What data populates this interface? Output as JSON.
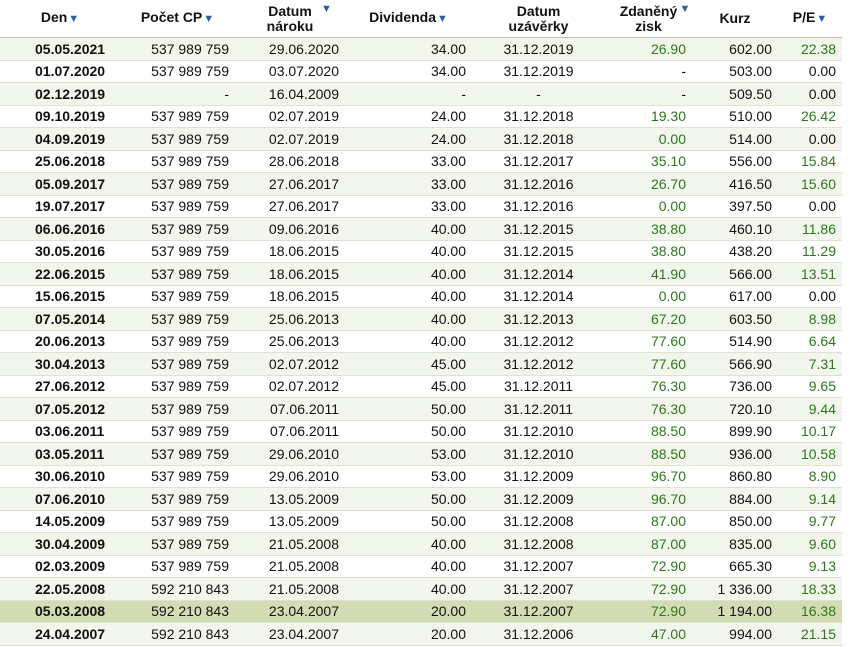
{
  "table": {
    "header": [
      "Den",
      "Počet CP",
      "Datum nároku",
      "Dividenda",
      "Datum uzávěrky",
      "Zdaněný zisk",
      "Kurz",
      "P/E"
    ],
    "highlight_row": 25,
    "rows": [
      [
        "05.05.2021",
        "537 989 759",
        "29.06.2020",
        "34.00",
        "31.12.2019",
        "26.90",
        "602.00",
        "22.38"
      ],
      [
        "01.07.2020",
        "537 989 759",
        "03.07.2020",
        "34.00",
        "31.12.2019",
        "-",
        "503.00",
        "0.00"
      ],
      [
        "02.12.2019",
        "-",
        "16.04.2009",
        "-",
        "-",
        "-",
        "509.50",
        "0.00"
      ],
      [
        "09.10.2019",
        "537 989 759",
        "02.07.2019",
        "24.00",
        "31.12.2018",
        "19.30",
        "510.00",
        "26.42"
      ],
      [
        "04.09.2019",
        "537 989 759",
        "02.07.2019",
        "24.00",
        "31.12.2018",
        "0.00",
        "514.00",
        "0.00"
      ],
      [
        "25.06.2018",
        "537 989 759",
        "28.06.2018",
        "33.00",
        "31.12.2017",
        "35.10",
        "556.00",
        "15.84"
      ],
      [
        "05.09.2017",
        "537 989 759",
        "27.06.2017",
        "33.00",
        "31.12.2016",
        "26.70",
        "416.50",
        "15.60"
      ],
      [
        "19.07.2017",
        "537 989 759",
        "27.06.2017",
        "33.00",
        "31.12.2016",
        "0.00",
        "397.50",
        "0.00"
      ],
      [
        "06.06.2016",
        "537 989 759",
        "09.06.2016",
        "40.00",
        "31.12.2015",
        "38.80",
        "460.10",
        "11.86"
      ],
      [
        "30.05.2016",
        "537 989 759",
        "18.06.2015",
        "40.00",
        "31.12.2015",
        "38.80",
        "438.20",
        "11.29"
      ],
      [
        "22.06.2015",
        "537 989 759",
        "18.06.2015",
        "40.00",
        "31.12.2014",
        "41.90",
        "566.00",
        "13.51"
      ],
      [
        "15.06.2015",
        "537 989 759",
        "18.06.2015",
        "40.00",
        "31.12.2014",
        "0.00",
        "617.00",
        "0.00"
      ],
      [
        "07.05.2014",
        "537 989 759",
        "25.06.2013",
        "40.00",
        "31.12.2013",
        "67.20",
        "603.50",
        "8.98"
      ],
      [
        "20.06.2013",
        "537 989 759",
        "25.06.2013",
        "40.00",
        "31.12.2012",
        "77.60",
        "514.90",
        "6.64"
      ],
      [
        "30.04.2013",
        "537 989 759",
        "02.07.2012",
        "45.00",
        "31.12.2012",
        "77.60",
        "566.90",
        "7.31"
      ],
      [
        "27.06.2012",
        "537 989 759",
        "02.07.2012",
        "45.00",
        "31.12.2011",
        "76.30",
        "736.00",
        "9.65"
      ],
      [
        "07.05.2012",
        "537 989 759",
        "07.06.2011",
        "50.00",
        "31.12.2011",
        "76.30",
        "720.10",
        "9.44"
      ],
      [
        "03.06.2011",
        "537 989 759",
        "07.06.2011",
        "50.00",
        "31.12.2010",
        "88.50",
        "899.90",
        "10.17"
      ],
      [
        "03.05.2011",
        "537 989 759",
        "29.06.2010",
        "53.00",
        "31.12.2010",
        "88.50",
        "936.00",
        "10.58"
      ],
      [
        "30.06.2010",
        "537 989 759",
        "29.06.2010",
        "53.00",
        "31.12.2009",
        "96.70",
        "860.80",
        "8.90"
      ],
      [
        "07.06.2010",
        "537 989 759",
        "13.05.2009",
        "50.00",
        "31.12.2009",
        "96.70",
        "884.00",
        "9.14"
      ],
      [
        "14.05.2009",
        "537 989 759",
        "13.05.2009",
        "50.00",
        "31.12.2008",
        "87.00",
        "850.00",
        "9.77"
      ],
      [
        "30.04.2009",
        "537 989 759",
        "21.05.2008",
        "40.00",
        "31.12.2008",
        "87.00",
        "835.00",
        "9.60"
      ],
      [
        "02.03.2009",
        "537 989 759",
        "21.05.2008",
        "40.00",
        "31.12.2007",
        "72.90",
        "665.30",
        "9.13"
      ],
      [
        "22.05.2008",
        "592 210 843",
        "21.05.2008",
        "40.00",
        "31.12.2007",
        "72.90",
        "1 336.00",
        "18.33"
      ],
      [
        "05.03.2008",
        "592 210 843",
        "23.04.2007",
        "20.00",
        "31.12.2007",
        "72.90",
        "1 194.00",
        "16.38"
      ],
      [
        "24.04.2007",
        "592 210 843",
        "23.04.2007",
        "20.00",
        "31.12.2006",
        "47.00",
        "994.00",
        "21.15"
      ]
    ]
  }
}
